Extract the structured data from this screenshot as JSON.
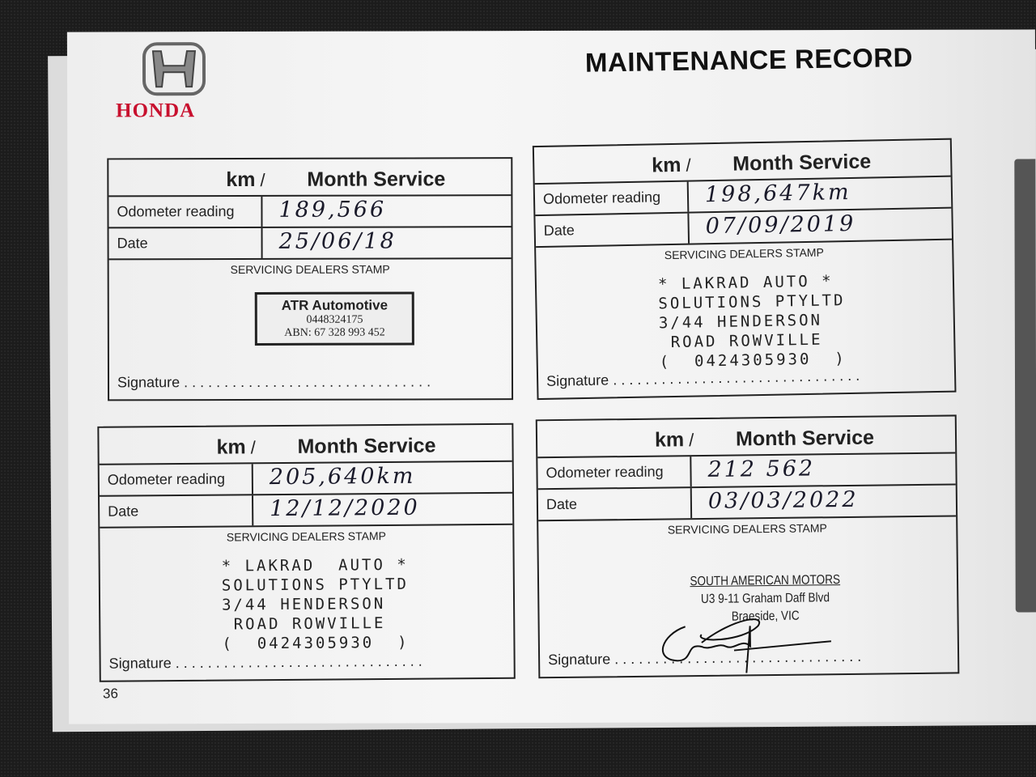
{
  "header": {
    "brand": "HONDA",
    "title": "MAINTENANCE RECORD"
  },
  "labels": {
    "km": "km",
    "slash": "/",
    "service": "Month Service",
    "odometer": "Odometer reading",
    "date": "Date",
    "stamp": "SERVICING DEALERS STAMP",
    "signature": "Signature",
    "dots": "..............................."
  },
  "records": [
    {
      "odometer": "189,566",
      "date": "25/06/18",
      "stamp_type": "box",
      "stamp": {
        "name": "ATR Automotive",
        "phone": "0448324175",
        "abn": "ABN: 67 328 993 452"
      }
    },
    {
      "odometer": "198,647km",
      "date": "07/09/2019",
      "stamp_type": "lakrad",
      "stamp": {
        "lines": [
          "* LAKRAD AUTO *",
          "SOLUTIONS PTYLTD",
          "3/44 HENDERSON",
          " ROAD ROWVILLE",
          "(  0424305930  )"
        ]
      }
    },
    {
      "odometer": "205,640km",
      "date": "12/12/2020",
      "stamp_type": "lakrad",
      "stamp": {
        "lines": [
          "* LAKRAD  AUTO *",
          "SOLUTIONS PTYLTD",
          "3/44 HENDERSON",
          " ROAD ROWVILLE",
          "(  0424305930  )"
        ]
      }
    },
    {
      "odometer": "212 562",
      "date": "03/03/2022",
      "stamp_type": "sam",
      "stamp": {
        "lines": [
          "SOUTH AMERICAN MOTORS",
          "U3 9-11 Graham Daff Blvd",
          "Braeside, VIC"
        ]
      },
      "signed": true
    }
  ],
  "page_number": "36",
  "colors": {
    "brand": "#c8102e",
    "ink": "#1a1a2a"
  }
}
